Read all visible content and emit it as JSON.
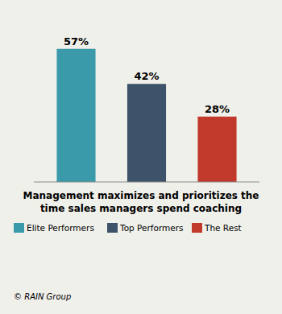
{
  "chart_data": {
    "type": "bar",
    "title": "Management maximizes and prioritizes the",
    "subtitle": "time sales managers spend coaching",
    "categories": [
      "Elite Performers",
      "Top Performers",
      "The Rest"
    ],
    "values": [
      57,
      42,
      28
    ],
    "value_labels": [
      "57%",
      "42%",
      "28%"
    ],
    "colors": [
      "#3a9aaa",
      "#3d5369",
      "#c0392b"
    ],
    "ylim": [
      0,
      70
    ],
    "data_labels": true,
    "tick_labels": false,
    "legend": "bottom",
    "annotations": [
      "© RAIN Group"
    ]
  }
}
